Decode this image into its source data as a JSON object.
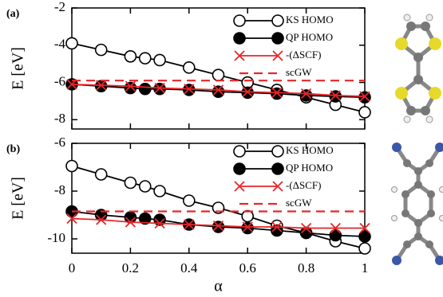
{
  "chart_data": [
    {
      "type": "line",
      "panel_label": "(a)",
      "ylabel": "E [eV]",
      "xlim": [
        0,
        1
      ],
      "ylim": [
        -8.5,
        -2
      ],
      "yticks": [
        -2,
        -4,
        -6,
        -8
      ],
      "series": [
        {
          "name": "KS HOMO",
          "color": "#000000",
          "marker": "open-circle",
          "x": [
            0,
            0.1,
            0.2,
            0.25,
            0.3,
            0.4,
            0.5,
            0.6,
            0.7,
            0.8,
            0.9,
            1
          ],
          "values": [
            -3.9,
            -4.25,
            -4.6,
            -4.7,
            -4.8,
            -5.2,
            -5.6,
            -6.0,
            -6.4,
            -6.8,
            -7.2,
            -7.6
          ]
        },
        {
          "name": "QP HOMO",
          "color": "#000000",
          "marker": "filled-circle",
          "x": [
            0,
            0.1,
            0.2,
            0.25,
            0.3,
            0.4,
            0.5,
            0.6,
            0.7,
            0.8,
            0.9,
            1
          ],
          "values": [
            -6.1,
            -6.2,
            -6.3,
            -6.35,
            -6.35,
            -6.4,
            -6.5,
            -6.55,
            -6.6,
            -6.7,
            -6.75,
            -6.8
          ]
        },
        {
          "name": "-(ΔSCF)",
          "color": "#e8262a",
          "marker": "x",
          "x": [
            0,
            0.1,
            0.2,
            0.3,
            0.4,
            0.5,
            0.6,
            0.7,
            0.8,
            0.9,
            1
          ],
          "values": [
            -6.1,
            -6.15,
            -6.2,
            -6.3,
            -6.35,
            -6.4,
            -6.5,
            -6.55,
            -6.6,
            -6.7,
            -6.75
          ]
        },
        {
          "name": "scGW",
          "color": "#e8262a",
          "dash": true,
          "x": [
            0,
            1
          ],
          "values": [
            -5.9,
            -5.9
          ]
        }
      ]
    },
    {
      "type": "line",
      "panel_label": "(b)",
      "ylabel": "E [eV]",
      "xlabel": "α",
      "xlim": [
        0,
        1
      ],
      "ylim": [
        -10.6,
        -6
      ],
      "yticks": [
        -6,
        -8,
        -10
      ],
      "xticks": [
        0,
        0.2,
        0.4,
        0.6,
        0.8,
        1
      ],
      "series": [
        {
          "name": "KS HOMO",
          "color": "#000000",
          "marker": "open-circle",
          "x": [
            0,
            0.1,
            0.2,
            0.25,
            0.3,
            0.4,
            0.5,
            0.6,
            0.7,
            0.8,
            0.9,
            1
          ],
          "values": [
            -6.95,
            -7.3,
            -7.65,
            -7.8,
            -8.0,
            -8.4,
            -8.7,
            -9.05,
            -9.45,
            -9.75,
            -10.1,
            -10.4
          ]
        },
        {
          "name": "QP HOMO",
          "color": "#000000",
          "marker": "filled-circle",
          "x": [
            0,
            0.1,
            0.2,
            0.25,
            0.3,
            0.4,
            0.5,
            0.6,
            0.7,
            0.8,
            0.9,
            1
          ],
          "values": [
            -8.85,
            -9.0,
            -9.1,
            -9.15,
            -9.2,
            -9.4,
            -9.5,
            -9.55,
            -9.65,
            -9.75,
            -9.85,
            -9.9
          ]
        },
        {
          "name": "-(ΔSCF)",
          "color": "#e8262a",
          "marker": "x",
          "x": [
            0,
            0.1,
            0.2,
            0.3,
            0.4,
            0.5,
            0.6,
            0.7,
            0.8,
            0.9,
            1
          ],
          "values": [
            -9.15,
            -9.2,
            -9.3,
            -9.35,
            -9.4,
            -9.45,
            -9.5,
            -9.5,
            -9.55,
            -9.55,
            -9.55
          ]
        },
        {
          "name": "scGW",
          "color": "#e8262a",
          "dash": true,
          "x": [
            0,
            1
          ],
          "values": [
            -8.85,
            -8.85
          ]
        }
      ]
    }
  ]
}
